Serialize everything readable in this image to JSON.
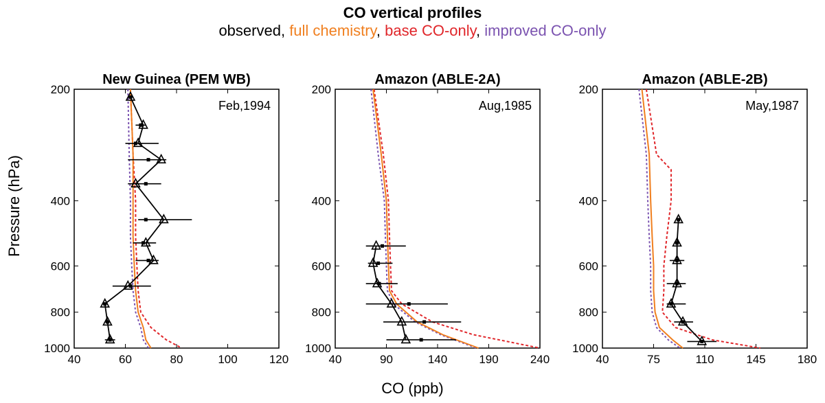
{
  "figure": {
    "title": "CO vertical profiles",
    "legend_items": [
      {
        "label": "observed",
        "color": "#000000"
      },
      {
        "label": "full chemistry",
        "color": "#f07f1f"
      },
      {
        "label": "base CO-only",
        "color": "#e0262a"
      },
      {
        "label": "improved CO-only",
        "color": "#7b53b0"
      }
    ],
    "xlabel": "CO (ppb)",
    "ylabel": "Pressure (hPa)"
  },
  "chart_data": [
    {
      "type": "line",
      "title": "New Guinea (PEM WB)",
      "annotation": "Feb,1994",
      "xlim": [
        40,
        120
      ],
      "xticks": [
        40,
        60,
        80,
        100,
        120
      ],
      "ylim": [
        1000,
        200
      ],
      "yticks": [
        200,
        400,
        600,
        800,
        1000
      ],
      "y_scale": "log",
      "series": [
        {
          "name": "observed",
          "color": "#000000",
          "pressure": [
            210,
            250,
            280,
            310,
            360,
            450,
            520,
            580,
            680,
            760,
            850,
            950
          ],
          "values": [
            62,
            67,
            65,
            74,
            64,
            75,
            68,
            71,
            61,
            52,
            53,
            54
          ]
        },
        {
          "name": "full chemistry",
          "color": "#f07f1f",
          "pressure": [
            200,
            300,
            400,
            500,
            600,
            700,
            800,
            880,
            950,
            1000
          ],
          "values": [
            62,
            63,
            63,
            63,
            63.5,
            64,
            65,
            67,
            68,
            70
          ]
        },
        {
          "name": "base CO-only",
          "color": "#e0262a",
          "pressure": [
            200,
            300,
            400,
            500,
            600,
            700,
            800,
            880,
            950,
            1000
          ],
          "values": [
            62,
            63,
            64,
            64,
            64.5,
            65,
            66,
            70,
            76,
            82
          ]
        },
        {
          "name": "improved CO-only",
          "color": "#7b53b0",
          "pressure": [
            200,
            300,
            400,
            500,
            600,
            700,
            800,
            880,
            950,
            1000
          ],
          "values": [
            61,
            61.5,
            62,
            62,
            62.5,
            63,
            64,
            66,
            67,
            69
          ]
        }
      ],
      "error_bars": [
        {
          "pressure": 210,
          "mean": 62,
          "range": [
            61,
            63
          ]
        },
        {
          "pressure": 250,
          "mean": 66,
          "range": [
            64,
            68
          ]
        },
        {
          "pressure": 280,
          "mean": 64,
          "range": [
            60,
            73
          ]
        },
        {
          "pressure": 310,
          "mean": 69,
          "range": [
            61,
            76
          ]
        },
        {
          "pressure": 360,
          "mean": 68,
          "range": [
            61,
            74
          ]
        },
        {
          "pressure": 450,
          "mean": 68,
          "range": [
            65,
            86
          ]
        },
        {
          "pressure": 520,
          "mean": 67,
          "range": [
            63,
            72
          ]
        },
        {
          "pressure": 580,
          "mean": 69,
          "range": [
            64,
            73
          ]
        },
        {
          "pressure": 680,
          "mean": 62,
          "range": [
            55,
            70
          ]
        },
        {
          "pressure": 760,
          "mean": 52,
          "range": [
            51,
            53
          ]
        },
        {
          "pressure": 850,
          "mean": 53,
          "range": [
            52,
            54
          ]
        },
        {
          "pressure": 950,
          "mean": 54,
          "range": [
            52,
            56
          ]
        }
      ]
    },
    {
      "type": "line",
      "title": "Amazon (ABLE-2A)",
      "annotation": "Aug,1985",
      "xlim": [
        40,
        240
      ],
      "xticks": [
        40,
        90,
        140,
        190,
        240
      ],
      "ylim": [
        1000,
        200
      ],
      "yticks": [
        200,
        400,
        600,
        800,
        1000
      ],
      "y_scale": "log",
      "series": [
        {
          "name": "observed",
          "color": "#000000",
          "pressure": [
            530,
            590,
            670,
            760,
            850,
            950
          ],
          "values": [
            80,
            77,
            81,
            95,
            105,
            109
          ]
        },
        {
          "name": "full chemistry",
          "color": "#f07f1f",
          "pressure": [
            200,
            300,
            400,
            500,
            600,
            700,
            760,
            850,
            920,
            1000
          ],
          "values": [
            77,
            85,
            90,
            91,
            92,
            93,
            100,
            120,
            145,
            180
          ]
        },
        {
          "name": "base CO-only",
          "color": "#e0262a",
          "pressure": [
            200,
            300,
            400,
            500,
            600,
            700,
            760,
            850,
            920,
            1000
          ],
          "values": [
            78,
            87,
            92,
            93,
            94,
            95,
            105,
            135,
            175,
            240
          ]
        },
        {
          "name": "improved CO-only",
          "color": "#7b53b0",
          "pressure": [
            200,
            300,
            400,
            500,
            600,
            700,
            760,
            850,
            920,
            1000
          ],
          "values": [
            75,
            82,
            88,
            89,
            90,
            91,
            97,
            118,
            143,
            178
          ]
        }
      ],
      "error_bars": [
        {
          "pressure": 530,
          "mean": 86,
          "range": [
            70,
            109
          ]
        },
        {
          "pressure": 590,
          "mean": 82,
          "range": [
            72,
            96
          ]
        },
        {
          "pressure": 670,
          "mean": 83,
          "range": [
            70,
            101
          ]
        },
        {
          "pressure": 760,
          "mean": 112,
          "range": [
            70,
            150
          ]
        },
        {
          "pressure": 850,
          "mean": 127,
          "range": [
            87,
            163
          ]
        },
        {
          "pressure": 950,
          "mean": 124,
          "range": [
            90,
            158
          ]
        }
      ]
    },
    {
      "type": "line",
      "title": "Amazon (ABLE-2B)",
      "annotation": "May,1987",
      "xlim": [
        40,
        180
      ],
      "xticks": [
        40,
        75,
        110,
        145,
        180
      ],
      "ylim": [
        1000,
        200
      ],
      "yticks": [
        200,
        400,
        600,
        800,
        1000
      ],
      "y_scale": "log",
      "series": [
        {
          "name": "observed",
          "color": "#000000",
          "pressure": [
            450,
            520,
            580,
            670,
            760,
            850,
            960
          ],
          "values": [
            92,
            91,
            91,
            91,
            87,
            95,
            108
          ]
        },
        {
          "name": "full chemistry",
          "color": "#f07f1f",
          "pressure": [
            200,
            300,
            400,
            500,
            600,
            700,
            800,
            880,
            950,
            1000
          ],
          "values": [
            67,
            72,
            73,
            74,
            75,
            75,
            76,
            79,
            88,
            95
          ]
        },
        {
          "name": "base CO-only",
          "color": "#e0262a",
          "pressure": [
            200,
            300,
            330,
            400,
            500,
            600,
            700,
            800,
            880,
            950,
            1000
          ],
          "values": [
            70,
            77,
            87,
            87,
            84,
            82,
            82,
            81,
            90,
            115,
            148
          ]
        },
        {
          "name": "improved CO-only",
          "color": "#7b53b0",
          "pressure": [
            200,
            300,
            400,
            500,
            600,
            700,
            800,
            880,
            950,
            1000
          ],
          "values": [
            65,
            70,
            71,
            72,
            73,
            73,
            74,
            77,
            85,
            93
          ]
        }
      ],
      "error_bars": [
        {
          "pressure": 450,
          "mean": 92,
          "range": [
            91,
            93
          ]
        },
        {
          "pressure": 520,
          "mean": 91,
          "range": [
            89,
            93
          ]
        },
        {
          "pressure": 580,
          "mean": 91,
          "range": [
            86,
            96
          ]
        },
        {
          "pressure": 670,
          "mean": 91,
          "range": [
            84,
            97
          ]
        },
        {
          "pressure": 760,
          "mean": 87,
          "range": [
            84,
            97
          ]
        },
        {
          "pressure": 850,
          "mean": 95,
          "range": [
            89,
            102
          ]
        },
        {
          "pressure": 960,
          "mean": 108,
          "range": [
            98,
            118
          ]
        }
      ]
    }
  ]
}
